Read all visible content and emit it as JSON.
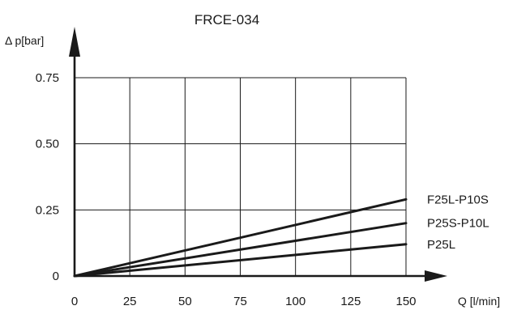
{
  "chart_data": {
    "type": "line",
    "title": "FRCE-034",
    "xlabel": "Q [l/min]",
    "ylabel": "Δ p[bar]",
    "xlim": [
      0,
      150
    ],
    "ylim": [
      0,
      0.75
    ],
    "x_ticks": [
      0,
      25,
      50,
      75,
      100,
      125,
      150
    ],
    "x_tick_labels": [
      "0",
      "25",
      "50",
      "75",
      "100",
      "125",
      "150"
    ],
    "y_ticks": [
      0,
      0.25,
      0.5,
      0.75
    ],
    "y_tick_labels": [
      "0",
      "0.25",
      "0.50",
      "0.75"
    ],
    "grid": true,
    "series": [
      {
        "name": "F25L-P10S",
        "x": [
          0,
          150
        ],
        "y": [
          0,
          0.29
        ]
      },
      {
        "name": "P25S-P10L",
        "x": [
          0,
          150
        ],
        "y": [
          0,
          0.2
        ]
      },
      {
        "name": "P25L",
        "x": [
          0,
          150
        ],
        "y": [
          0,
          0.12
        ]
      }
    ]
  }
}
